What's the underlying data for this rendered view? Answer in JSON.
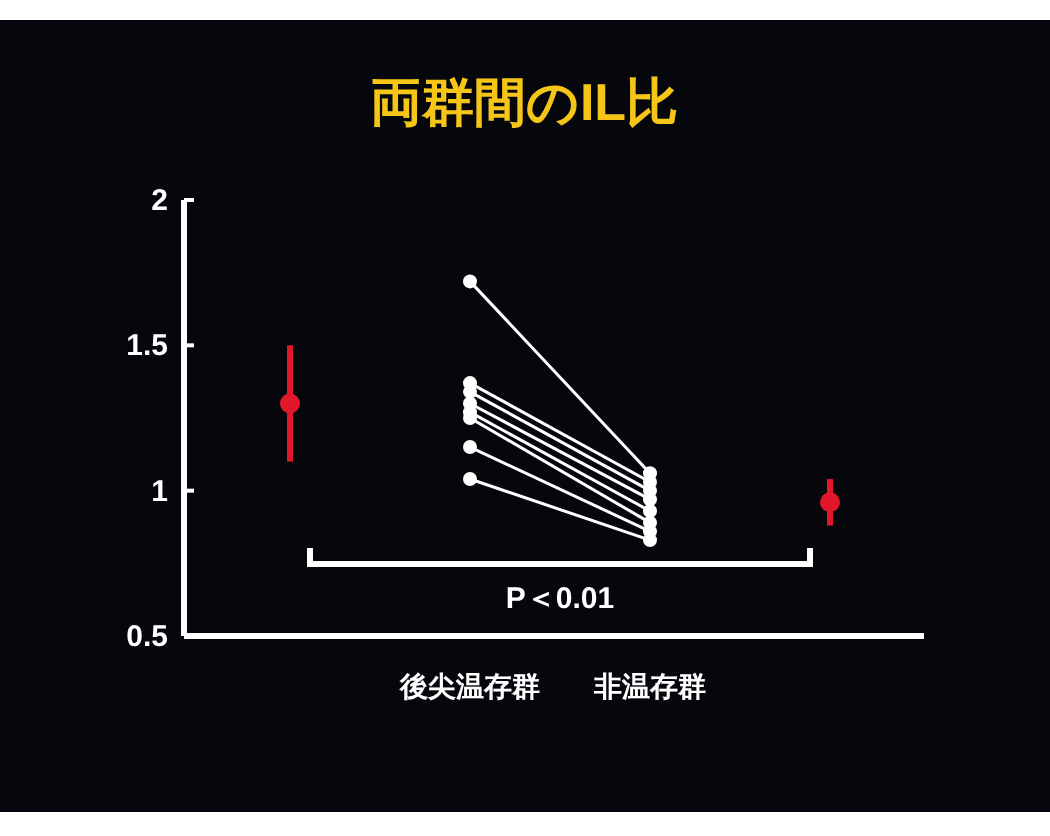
{
  "chart_data": {
    "type": "line",
    "title": "両群間のIL比",
    "categories": [
      null,
      "後尖温存群",
      "非温存群",
      null
    ],
    "series": [
      {
        "type": "line",
        "color": "#ffffff",
        "values": [
          null,
          1.72,
          1.06,
          null
        ]
      },
      {
        "type": "line",
        "color": "#ffffff",
        "values": [
          null,
          1.37,
          1.03,
          null
        ]
      },
      {
        "type": "line",
        "color": "#ffffff",
        "values": [
          null,
          1.34,
          1.0,
          null
        ]
      },
      {
        "type": "line",
        "color": "#ffffff",
        "values": [
          null,
          1.3,
          0.97,
          null
        ]
      },
      {
        "type": "line",
        "color": "#ffffff",
        "values": [
          null,
          1.27,
          0.93,
          null
        ]
      },
      {
        "type": "line",
        "color": "#ffffff",
        "values": [
          null,
          1.25,
          0.89,
          null
        ]
      },
      {
        "type": "line",
        "color": "#ffffff",
        "values": [
          null,
          1.15,
          0.86,
          null
        ]
      },
      {
        "type": "line",
        "color": "#ffffff",
        "values": [
          null,
          1.04,
          0.83,
          null
        ]
      },
      {
        "type": "scatter",
        "color": "#e0182a",
        "values": [
          1.3,
          null,
          null,
          0.96
        ],
        "errors": [
          0.2,
          null,
          null,
          0.08
        ]
      }
    ],
    "marker": "circle",
    "ylim": [
      0.5,
      2
    ],
    "yticks": [
      0.5,
      1,
      1.5,
      2
    ],
    "grid": false,
    "annotations": [
      "P＜0.01"
    ]
  }
}
